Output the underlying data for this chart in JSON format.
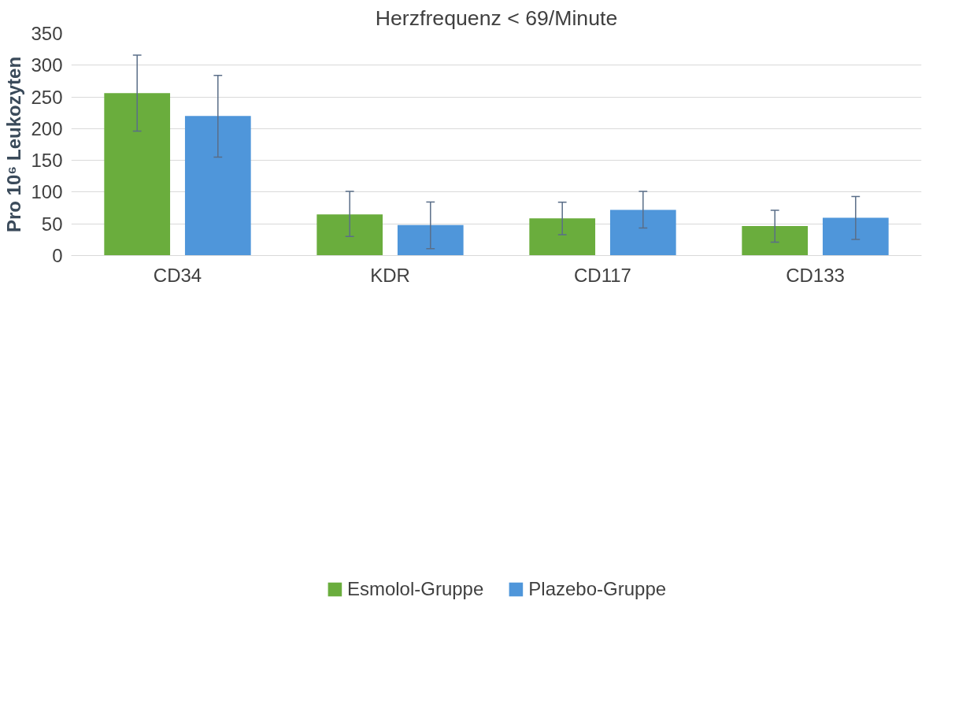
{
  "chart_data": {
    "type": "bar",
    "title": "Herzfrequenz < 69/Minute",
    "ylabel": "Pro 10⁶ Leukozyten",
    "categories": [
      "CD34",
      "KDR",
      "CD117",
      "CD133"
    ],
    "series": [
      {
        "name": "Esmolol-Gruppe",
        "color": "#6aad3d",
        "values": [
          256,
          65,
          58.5,
          46.5
        ],
        "errors": [
          [
            196,
            316
          ],
          [
            30,
            101
          ],
          [
            33,
            84
          ],
          [
            21,
            71.5
          ]
        ]
      },
      {
        "name": "Plazebo-Gruppe",
        "color": "#4f96da",
        "values": [
          220,
          48,
          72,
          59.5
        ],
        "errors": [
          [
            155,
            284
          ],
          [
            11,
            84.5
          ],
          [
            43.5,
            101
          ],
          [
            25.5,
            93
          ]
        ]
      }
    ],
    "ylim": [
      0,
      350
    ],
    "yticks": [
      0,
      50,
      100,
      150,
      200,
      250,
      300,
      350
    ],
    "grid": "y",
    "legend": "bottom"
  }
}
